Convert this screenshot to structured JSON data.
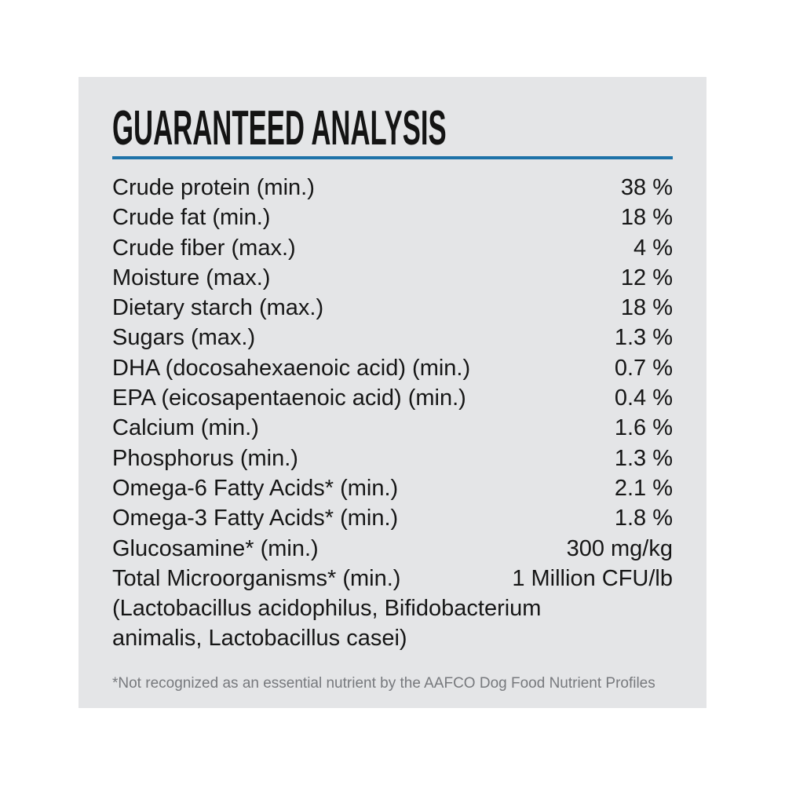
{
  "panel": {
    "title": "GUARANTEED ANALYSIS",
    "accent_color": "#1d72a8",
    "background_color": "#e4e5e7",
    "rows": [
      {
        "label": "Crude protein (min.)",
        "value": "38 %"
      },
      {
        "label": "Crude fat (min.)",
        "value": "18 %"
      },
      {
        "label": "Crude fiber (max.)",
        "value": "4 %"
      },
      {
        "label": "Moisture (max.)",
        "value": "12 %"
      },
      {
        "label": "Dietary starch (max.)",
        "value": "18 %"
      },
      {
        "label": "Sugars (max.)",
        "value": "1.3 %"
      },
      {
        "label": "DHA (docosahexaenoic acid) (min.)",
        "value": "0.7 %"
      },
      {
        "label": "EPA (eicosapentaenoic acid) (min.)",
        "value": "0.4 %"
      },
      {
        "label": "Calcium (min.)",
        "value": "1.6 %"
      },
      {
        "label": "Phosphorus (min.)",
        "value": "1.3 %"
      },
      {
        "label": "Omega-6 Fatty Acids* (min.)",
        "value": "2.1 %"
      },
      {
        "label": "Omega-3 Fatty Acids* (min.)",
        "value": "1.8 %"
      },
      {
        "label": "Glucosamine* (min.)",
        "value": "300 mg/kg"
      },
      {
        "label": "Total Microorganisms* (min.)",
        "value": "1 Million CFU/lb"
      }
    ],
    "continuation_lines": [
      "(Lactobacillus acidophilus, Bifidobacterium",
      "animalis, Lactobacillus casei)"
    ],
    "footnote": "*Not recognized as an essential nutrient by the AAFCO Dog Food Nutrient Profiles"
  }
}
